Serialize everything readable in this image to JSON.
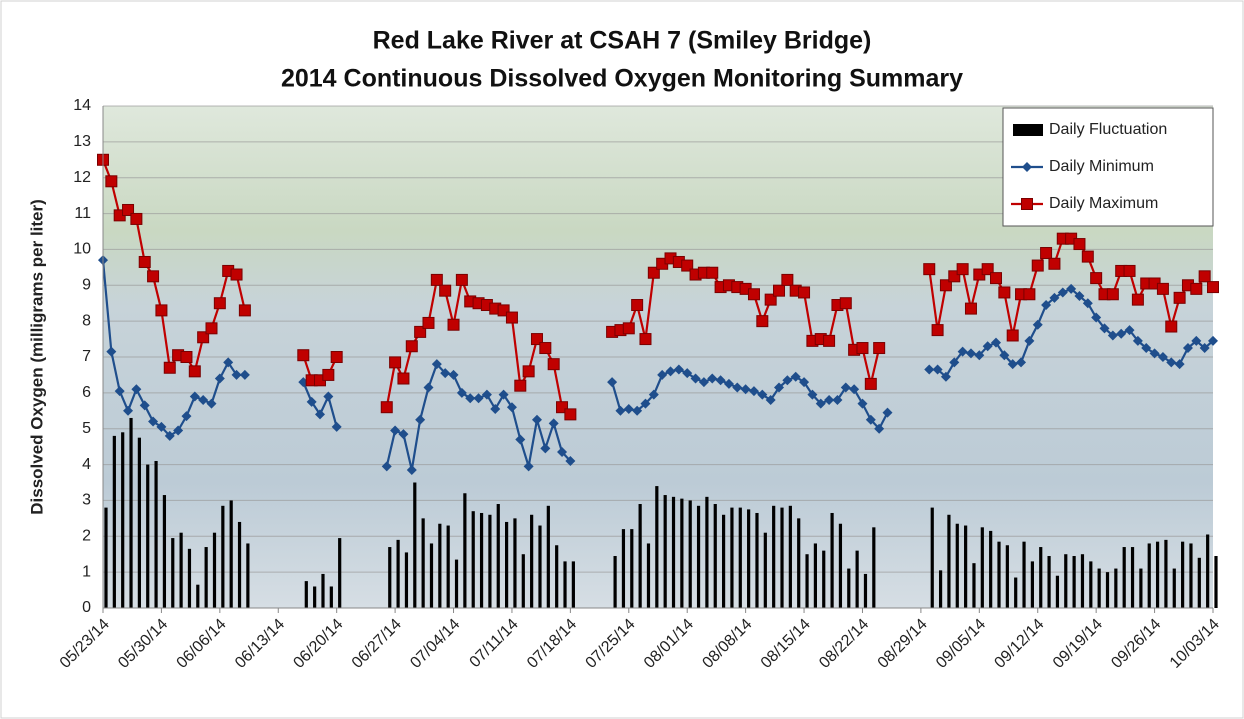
{
  "chart_data": {
    "type": "line",
    "title": [
      "Red Lake River at CSAH 7 (Smiley Bridge)",
      "2014 Continuous Dissolved Oxygen Monitoring Summary"
    ],
    "y_label": "Dissolved Oxygen (milligrams per liter)",
    "x": [
      "2014-05-23",
      "2014-05-24",
      "2014-05-25",
      "2014-05-26",
      "2014-05-27",
      "2014-05-28",
      "2014-05-29",
      "2014-05-30",
      "2014-05-31",
      "2014-06-01",
      "2014-06-02",
      "2014-06-03",
      "2014-06-04",
      "2014-06-05",
      "2014-06-06",
      "2014-06-07",
      "2014-06-08",
      "2014-06-09",
      "2014-06-10",
      "2014-06-11",
      "2014-06-12",
      "2014-06-13",
      "2014-06-14",
      "2014-06-15",
      "2014-06-16",
      "2014-06-17",
      "2014-06-18",
      "2014-06-19",
      "2014-06-20",
      "2014-06-21",
      "2014-06-22",
      "2014-06-23",
      "2014-06-24",
      "2014-06-25",
      "2014-06-26",
      "2014-06-27",
      "2014-06-28",
      "2014-06-29",
      "2014-06-30",
      "2014-07-01",
      "2014-07-02",
      "2014-07-03",
      "2014-07-04",
      "2014-07-05",
      "2014-07-06",
      "2014-07-07",
      "2014-07-08",
      "2014-07-09",
      "2014-07-10",
      "2014-07-11",
      "2014-07-12",
      "2014-07-13",
      "2014-07-14",
      "2014-07-15",
      "2014-07-16",
      "2014-07-17",
      "2014-07-18",
      "2014-07-19",
      "2014-07-20",
      "2014-07-21",
      "2014-07-22",
      "2014-07-23",
      "2014-07-24",
      "2014-07-25",
      "2014-07-26",
      "2014-07-27",
      "2014-07-28",
      "2014-07-29",
      "2014-07-30",
      "2014-07-31",
      "2014-08-01",
      "2014-08-02",
      "2014-08-03",
      "2014-08-04",
      "2014-08-05",
      "2014-08-06",
      "2014-08-07",
      "2014-08-08",
      "2014-08-09",
      "2014-08-10",
      "2014-08-11",
      "2014-08-12",
      "2014-08-13",
      "2014-08-14",
      "2014-08-15",
      "2014-08-16",
      "2014-08-17",
      "2014-08-18",
      "2014-08-19",
      "2014-08-20",
      "2014-08-21",
      "2014-08-22",
      "2014-08-23",
      "2014-08-24",
      "2014-08-25",
      "2014-08-26",
      "2014-08-27",
      "2014-08-28",
      "2014-08-29",
      "2014-08-30",
      "2014-08-31",
      "2014-09-01",
      "2014-09-02",
      "2014-09-03",
      "2014-09-04",
      "2014-09-05",
      "2014-09-06",
      "2014-09-07",
      "2014-09-08",
      "2014-09-09",
      "2014-09-10",
      "2014-09-11",
      "2014-09-12",
      "2014-09-13",
      "2014-09-14",
      "2014-09-15",
      "2014-09-16",
      "2014-09-17",
      "2014-09-18",
      "2014-09-19",
      "2014-09-20",
      "2014-09-21",
      "2014-09-22",
      "2014-09-23",
      "2014-09-24",
      "2014-09-25",
      "2014-09-26",
      "2014-09-27",
      "2014-09-28",
      "2014-09-29",
      "2014-09-30",
      "2014-10-01",
      "2014-10-02",
      "2014-10-03"
    ],
    "series": [
      {
        "name": "Daily Fluctuation",
        "type": "bar",
        "color": "#000000",
        "values": [
          2.8,
          4.8,
          4.9,
          5.3,
          4.75,
          4.0,
          4.1,
          3.15,
          1.95,
          2.1,
          1.65,
          0.65,
          1.7,
          2.1,
          2.85,
          3.0,
          2.4,
          1.8,
          null,
          null,
          null,
          null,
          null,
          null,
          0.75,
          0.6,
          0.95,
          0.6,
          1.95,
          null,
          null,
          null,
          null,
          null,
          1.7,
          1.9,
          1.55,
          3.5,
          2.5,
          1.8,
          2.35,
          2.3,
          1.35,
          3.2,
          2.7,
          2.65,
          2.6,
          2.9,
          2.4,
          2.5,
          1.5,
          2.6,
          2.3,
          2.85,
          1.75,
          1.3,
          1.3,
          null,
          null,
          null,
          null,
          1.45,
          2.2,
          2.2,
          2.9,
          1.8,
          3.4,
          3.15,
          3.1,
          3.05,
          3.0,
          2.85,
          3.1,
          2.9,
          2.6,
          2.8,
          2.8,
          2.75,
          2.65,
          2.1,
          2.85,
          2.8,
          2.85,
          2.5,
          1.5,
          1.8,
          1.6,
          2.65,
          2.35,
          1.1,
          1.6,
          0.95,
          2.25,
          null,
          null,
          null,
          null,
          null,
          null,
          2.8,
          1.05,
          2.6,
          2.35,
          2.3,
          1.25,
          2.25,
          2.15,
          1.85,
          1.75,
          0.85,
          1.85,
          1.3,
          1.7,
          1.45,
          0.9,
          1.5,
          1.45,
          1.5,
          1.3,
          1.1,
          1.0,
          1.1,
          1.7,
          1.7,
          1.1,
          1.8,
          1.85,
          1.9,
          1.1,
          1.85,
          1.8,
          1.4,
          2.05,
          1.45
        ]
      },
      {
        "name": "Daily Minimum",
        "type": "line",
        "marker": "diamond",
        "color": "#1f4e8c",
        "values": [
          9.7,
          7.15,
          6.05,
          5.5,
          6.1,
          5.65,
          5.2,
          5.05,
          4.8,
          4.95,
          5.35,
          5.9,
          5.8,
          5.7,
          6.4,
          6.85,
          6.5,
          6.5,
          null,
          null,
          null,
          null,
          null,
          null,
          6.3,
          5.75,
          5.4,
          5.9,
          5.05,
          null,
          null,
          null,
          null,
          null,
          3.95,
          4.95,
          4.85,
          3.85,
          5.25,
          6.15,
          6.8,
          6.55,
          6.5,
          6.0,
          5.85,
          5.85,
          5.95,
          5.55,
          5.95,
          5.6,
          4.7,
          3.95,
          5.25,
          4.45,
          5.15,
          4.35,
          4.1,
          null,
          null,
          null,
          null,
          6.3,
          5.5,
          5.55,
          5.5,
          5.7,
          5.95,
          6.5,
          6.6,
          6.65,
          6.55,
          6.4,
          6.3,
          6.4,
          6.35,
          6.25,
          6.15,
          6.1,
          6.05,
          5.95,
          5.8,
          6.15,
          6.35,
          6.45,
          6.3,
          5.95,
          5.7,
          5.8,
          5.8,
          6.15,
          6.1,
          5.7,
          5.25,
          5.0,
          5.45,
          null,
          null,
          null,
          null,
          6.65,
          6.65,
          6.45,
          6.85,
          7.15,
          7.1,
          7.05,
          7.3,
          7.4,
          7.05,
          6.8,
          6.85,
          7.45,
          7.9,
          8.45,
          8.65,
          8.8,
          8.9,
          8.7,
          8.5,
          8.1,
          7.8,
          7.6,
          7.65,
          7.75,
          7.45,
          7.25,
          7.1,
          7.0,
          6.85,
          6.8,
          7.25,
          7.45,
          7.25,
          7.45
        ]
      },
      {
        "name": "Daily Maximum",
        "type": "line",
        "marker": "square",
        "color": "#c00000",
        "values": [
          12.5,
          11.9,
          10.95,
          11.1,
          10.85,
          9.65,
          9.25,
          8.3,
          6.7,
          7.05,
          7.0,
          6.6,
          7.55,
          7.8,
          8.5,
          9.4,
          9.3,
          8.3,
          null,
          null,
          null,
          null,
          null,
          null,
          7.05,
          6.35,
          6.35,
          6.5,
          7.0,
          null,
          null,
          null,
          null,
          null,
          5.6,
          6.85,
          6.4,
          7.3,
          7.7,
          7.95,
          9.15,
          8.85,
          7.9,
          9.15,
          8.55,
          8.5,
          8.45,
          8.35,
          8.3,
          8.1,
          6.2,
          6.6,
          7.5,
          7.25,
          6.8,
          5.6,
          5.4,
          null,
          null,
          null,
          null,
          7.7,
          7.75,
          7.8,
          8.45,
          7.5,
          9.35,
          9.6,
          9.75,
          9.65,
          9.55,
          9.3,
          9.35,
          9.35,
          8.95,
          9.0,
          8.95,
          8.9,
          8.75,
          8.0,
          8.6,
          8.85,
          9.15,
          8.85,
          8.8,
          7.45,
          7.5,
          7.45,
          8.45,
          8.5,
          7.2,
          7.25,
          6.25,
          7.25,
          null,
          null,
          null,
          null,
          null,
          9.45,
          7.75,
          9.0,
          9.25,
          9.45,
          8.35,
          9.3,
          9.45,
          9.2,
          8.8,
          7.6,
          8.75,
          8.75,
          9.55,
          9.9,
          9.6,
          10.3,
          10.3,
          10.15,
          9.8,
          9.2,
          8.75,
          8.75,
          9.4,
          9.4,
          8.6,
          9.05,
          9.05,
          8.9,
          7.85,
          8.65,
          9.0,
          8.9,
          9.25,
          8.95
        ]
      }
    ],
    "xlim": [
      "2014-05-23",
      "2014-10-03"
    ],
    "xticks": [
      {
        "value": "2014-05-23",
        "label": "05/23/14"
      },
      {
        "value": "2014-05-30",
        "label": "05/30/14"
      },
      {
        "value": "2014-06-06",
        "label": "06/06/14"
      },
      {
        "value": "2014-06-13",
        "label": "06/13/14"
      },
      {
        "value": "2014-06-20",
        "label": "06/20/14"
      },
      {
        "value": "2014-06-27",
        "label": "06/27/14"
      },
      {
        "value": "2014-07-04",
        "label": "07/04/14"
      },
      {
        "value": "2014-07-11",
        "label": "07/11/14"
      },
      {
        "value": "2014-07-18",
        "label": "07/18/14"
      },
      {
        "value": "2014-07-25",
        "label": "07/25/14"
      },
      {
        "value": "2014-08-01",
        "label": "08/01/14"
      },
      {
        "value": "2014-08-08",
        "label": "08/08/14"
      },
      {
        "value": "2014-08-15",
        "label": "08/15/14"
      },
      {
        "value": "2014-08-22",
        "label": "08/22/14"
      },
      {
        "value": "2014-08-29",
        "label": "08/29/14"
      },
      {
        "value": "2014-09-05",
        "label": "09/05/14"
      },
      {
        "value": "2014-09-12",
        "label": "09/12/14"
      },
      {
        "value": "2014-09-19",
        "label": "09/19/14"
      },
      {
        "value": "2014-09-26",
        "label": "09/26/14"
      },
      {
        "value": "2014-10-03",
        "label": "10/03/14"
      }
    ],
    "ylim": [
      0,
      14
    ],
    "yticks": [
      0,
      1,
      2,
      3,
      4,
      5,
      6,
      7,
      8,
      9,
      10,
      11,
      12,
      13,
      14
    ],
    "grid": true,
    "legend": "upper right"
  }
}
